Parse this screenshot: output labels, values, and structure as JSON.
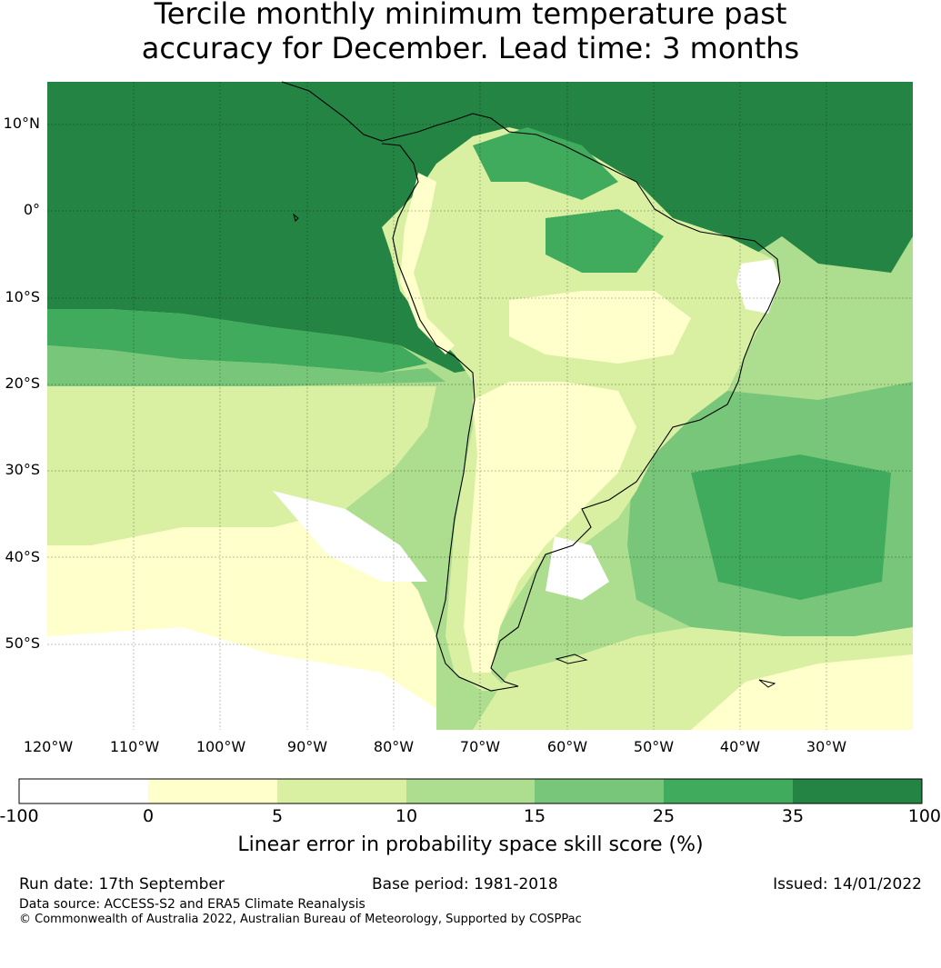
{
  "title_line1": "Tercile monthly minimum temperature past",
  "title_line2": "accuracy for December. Lead time: 3 months",
  "map": {
    "lat_labels": [
      "10°N",
      "0°",
      "10°S",
      "20°S",
      "30°S",
      "40°S",
      "50°S"
    ],
    "lon_labels": [
      "120°W",
      "110°W",
      "100°W",
      "90°W",
      "80°W",
      "70°W",
      "60°W",
      "50°W",
      "40°W",
      "30°W"
    ]
  },
  "colorbar": {
    "ticks": [
      "-100",
      "0",
      "5",
      "10",
      "15",
      "25",
      "35",
      "100"
    ],
    "colors": [
      "#ffffff",
      "#ffffcc",
      "#d9f0a3",
      "#addd8e",
      "#78c679",
      "#41ab5d",
      "#238443"
    ],
    "label": "Linear error in probability space skill score (%)"
  },
  "footer": {
    "run_date": "Run date: 17th September",
    "base_period": "Base period: 1981-2018",
    "issued": "Issued: 14/01/2022",
    "source": "Data source: ACCESS-S2 and ERA5 Climate Reanalysis",
    "copyright": "© Commonwealth of Australia 2022, Australian Bureau of Meteorology, Supported by COSPPac"
  }
}
